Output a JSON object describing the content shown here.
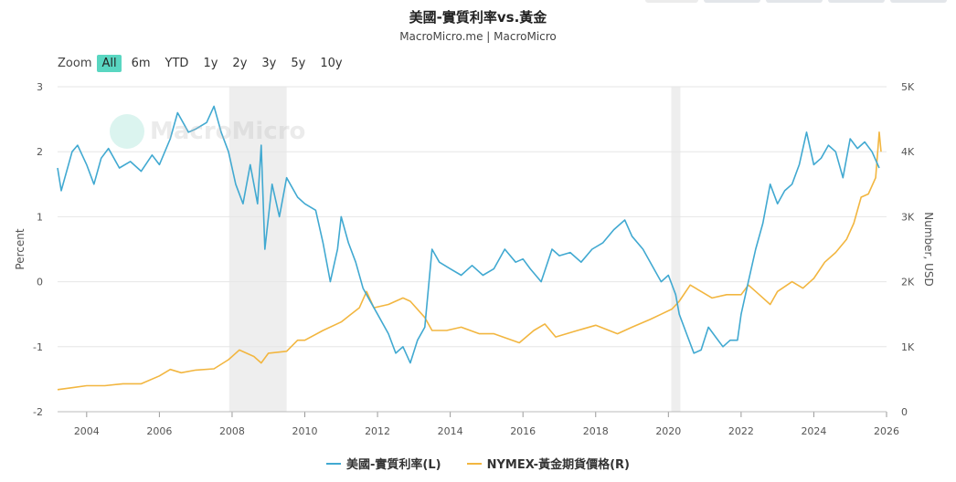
{
  "title": "美國-實質利率vs.黃金",
  "subtitle": "MacroMicro.me | MacroMicro",
  "zoom": {
    "label": "Zoom",
    "buttons": [
      "All",
      "6m",
      "YTD",
      "1y",
      "2y",
      "3y",
      "5y",
      "10y"
    ],
    "active": "All"
  },
  "watermark": "MacroMicro",
  "colors": {
    "series_left": "#41a9d1",
    "series_right": "#f2b640",
    "shade": "#eeeeee"
  },
  "chart_data": {
    "type": "line",
    "x_range": [
      2003.2,
      2026.0
    ],
    "x_ticks": [
      "2004",
      "2006",
      "2008",
      "2010",
      "2012",
      "2014",
      "2016",
      "2018",
      "2020",
      "2022",
      "2024",
      "2026"
    ],
    "y_left": {
      "label": "Percent",
      "range": [
        -2,
        3
      ],
      "ticks": [
        "3",
        "2",
        "1",
        "0",
        "-1",
        "-2"
      ]
    },
    "y_right": {
      "label": "Number, USD",
      "range": [
        0,
        5000
      ],
      "ticks": [
        "5K",
        "4K",
        "3K",
        "2K",
        "1K",
        "0"
      ]
    },
    "recession_bands": [
      [
        2007.92,
        2009.5
      ],
      [
        2020.08,
        2020.33
      ]
    ],
    "grid": true,
    "legend_position": "bottom",
    "series": [
      {
        "name": "美國-實質利率(L)",
        "axis": "left",
        "points": [
          [
            2003.2,
            1.75
          ],
          [
            2003.3,
            1.4
          ],
          [
            2003.6,
            2.0
          ],
          [
            2003.75,
            2.1
          ],
          [
            2004.0,
            1.8
          ],
          [
            2004.2,
            1.5
          ],
          [
            2004.4,
            1.9
          ],
          [
            2004.6,
            2.05
          ],
          [
            2004.9,
            1.75
          ],
          [
            2005.2,
            1.85
          ],
          [
            2005.5,
            1.7
          ],
          [
            2005.8,
            1.95
          ],
          [
            2006.0,
            1.8
          ],
          [
            2006.3,
            2.2
          ],
          [
            2006.5,
            2.6
          ],
          [
            2006.8,
            2.3
          ],
          [
            2007.0,
            2.35
          ],
          [
            2007.3,
            2.45
          ],
          [
            2007.5,
            2.7
          ],
          [
            2007.7,
            2.3
          ],
          [
            2007.9,
            2.0
          ],
          [
            2008.1,
            1.5
          ],
          [
            2008.3,
            1.2
          ],
          [
            2008.5,
            1.8
          ],
          [
            2008.7,
            1.2
          ],
          [
            2008.8,
            2.1
          ],
          [
            2008.9,
            0.5
          ],
          [
            2009.1,
            1.5
          ],
          [
            2009.3,
            1.0
          ],
          [
            2009.5,
            1.6
          ],
          [
            2009.8,
            1.3
          ],
          [
            2010.0,
            1.2
          ],
          [
            2010.3,
            1.1
          ],
          [
            2010.5,
            0.6
          ],
          [
            2010.7,
            0.0
          ],
          [
            2010.9,
            0.5
          ],
          [
            2011.0,
            1.0
          ],
          [
            2011.2,
            0.6
          ],
          [
            2011.4,
            0.3
          ],
          [
            2011.6,
            -0.1
          ],
          [
            2011.8,
            -0.3
          ],
          [
            2012.0,
            -0.5
          ],
          [
            2012.3,
            -0.8
          ],
          [
            2012.5,
            -1.1
          ],
          [
            2012.7,
            -1.0
          ],
          [
            2012.9,
            -1.25
          ],
          [
            2013.1,
            -0.9
          ],
          [
            2013.3,
            -0.7
          ],
          [
            2013.5,
            0.5
          ],
          [
            2013.7,
            0.3
          ],
          [
            2014.0,
            0.2
          ],
          [
            2014.3,
            0.1
          ],
          [
            2014.6,
            0.25
          ],
          [
            2014.9,
            0.1
          ],
          [
            2015.2,
            0.2
          ],
          [
            2015.5,
            0.5
          ],
          [
            2015.8,
            0.3
          ],
          [
            2016.0,
            0.35
          ],
          [
            2016.2,
            0.2
          ],
          [
            2016.5,
            0.0
          ],
          [
            2016.8,
            0.5
          ],
          [
            2017.0,
            0.4
          ],
          [
            2017.3,
            0.45
          ],
          [
            2017.6,
            0.3
          ],
          [
            2017.9,
            0.5
          ],
          [
            2018.2,
            0.6
          ],
          [
            2018.5,
            0.8
          ],
          [
            2018.8,
            0.95
          ],
          [
            2019.0,
            0.7
          ],
          [
            2019.3,
            0.5
          ],
          [
            2019.6,
            0.2
          ],
          [
            2019.8,
            0.0
          ],
          [
            2020.0,
            0.1
          ],
          [
            2020.2,
            -0.2
          ],
          [
            2020.3,
            -0.5
          ],
          [
            2020.5,
            -0.8
          ],
          [
            2020.7,
            -1.1
          ],
          [
            2020.9,
            -1.05
          ],
          [
            2021.1,
            -0.7
          ],
          [
            2021.3,
            -0.85
          ],
          [
            2021.5,
            -1.0
          ],
          [
            2021.7,
            -0.9
          ],
          [
            2021.9,
            -0.9
          ],
          [
            2022.0,
            -0.5
          ],
          [
            2022.2,
            0.0
          ],
          [
            2022.4,
            0.5
          ],
          [
            2022.6,
            0.9
          ],
          [
            2022.8,
            1.5
          ],
          [
            2023.0,
            1.2
          ],
          [
            2023.2,
            1.4
          ],
          [
            2023.4,
            1.5
          ],
          [
            2023.6,
            1.8
          ],
          [
            2023.8,
            2.3
          ],
          [
            2024.0,
            1.8
          ],
          [
            2024.2,
            1.9
          ],
          [
            2024.4,
            2.1
          ],
          [
            2024.6,
            2.0
          ],
          [
            2024.8,
            1.6
          ],
          [
            2025.0,
            2.2
          ],
          [
            2025.2,
            2.05
          ],
          [
            2025.4,
            2.15
          ],
          [
            2025.6,
            2.0
          ],
          [
            2025.8,
            1.75
          ]
        ]
      },
      {
        "name": "NYMEX-黃金期貨價格(R)",
        "axis": "right",
        "points": [
          [
            2003.2,
            340
          ],
          [
            2003.6,
            370
          ],
          [
            2004.0,
            400
          ],
          [
            2004.5,
            400
          ],
          [
            2005.0,
            430
          ],
          [
            2005.5,
            430
          ],
          [
            2006.0,
            550
          ],
          [
            2006.3,
            650
          ],
          [
            2006.6,
            600
          ],
          [
            2007.0,
            640
          ],
          [
            2007.5,
            660
          ],
          [
            2007.9,
            800
          ],
          [
            2008.2,
            950
          ],
          [
            2008.6,
            850
          ],
          [
            2008.8,
            750
          ],
          [
            2009.0,
            900
          ],
          [
            2009.5,
            930
          ],
          [
            2009.8,
            1100
          ],
          [
            2010.0,
            1100
          ],
          [
            2010.5,
            1250
          ],
          [
            2011.0,
            1380
          ],
          [
            2011.5,
            1600
          ],
          [
            2011.7,
            1850
          ],
          [
            2011.9,
            1600
          ],
          [
            2012.3,
            1650
          ],
          [
            2012.7,
            1750
          ],
          [
            2012.9,
            1700
          ],
          [
            2013.3,
            1450
          ],
          [
            2013.5,
            1250
          ],
          [
            2013.9,
            1250
          ],
          [
            2014.3,
            1300
          ],
          [
            2014.8,
            1200
          ],
          [
            2015.2,
            1200
          ],
          [
            2015.9,
            1060
          ],
          [
            2016.3,
            1250
          ],
          [
            2016.6,
            1350
          ],
          [
            2016.9,
            1150
          ],
          [
            2017.5,
            1250
          ],
          [
            2018.0,
            1330
          ],
          [
            2018.6,
            1200
          ],
          [
            2019.0,
            1300
          ],
          [
            2019.5,
            1420
          ],
          [
            2019.8,
            1500
          ],
          [
            2020.1,
            1580
          ],
          [
            2020.3,
            1700
          ],
          [
            2020.6,
            1950
          ],
          [
            2020.9,
            1850
          ],
          [
            2021.2,
            1750
          ],
          [
            2021.6,
            1800
          ],
          [
            2022.0,
            1800
          ],
          [
            2022.2,
            1950
          ],
          [
            2022.5,
            1800
          ],
          [
            2022.8,
            1650
          ],
          [
            2023.0,
            1850
          ],
          [
            2023.4,
            2000
          ],
          [
            2023.7,
            1900
          ],
          [
            2024.0,
            2050
          ],
          [
            2024.3,
            2300
          ],
          [
            2024.6,
            2450
          ],
          [
            2024.9,
            2650
          ],
          [
            2025.1,
            2900
          ],
          [
            2025.3,
            3300
          ],
          [
            2025.5,
            3350
          ],
          [
            2025.7,
            3600
          ],
          [
            2025.8,
            4300
          ],
          [
            2025.85,
            4000
          ]
        ]
      }
    ]
  }
}
